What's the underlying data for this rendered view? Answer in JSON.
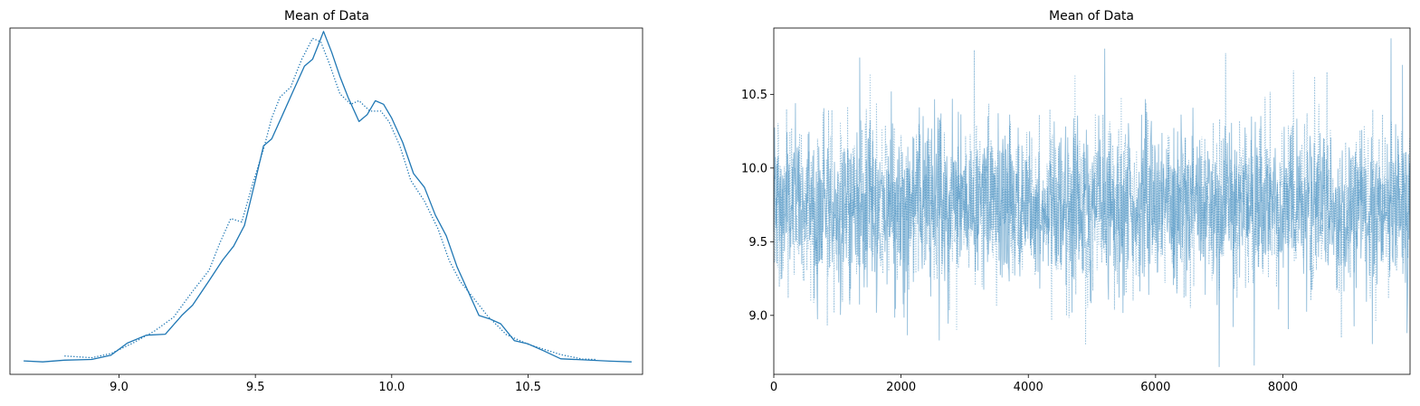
{
  "figure": {
    "panels": [
      {
        "title": "Mean of Data"
      },
      {
        "title": "Mean of Data"
      }
    ]
  },
  "chart_data": [
    {
      "type": "line",
      "title": "Mean of Data",
      "xlabel": "",
      "ylabel": "",
      "xlim": [
        8.6,
        10.92
      ],
      "ylim": [
        0,
        1.0
      ],
      "x_ticks": [
        "9.0",
        "9.5",
        "10.0",
        "10.5"
      ],
      "x_tick_values": [
        9.0,
        9.5,
        10.0,
        10.5
      ],
      "y_ticks": [],
      "grid": false,
      "line_color": "#1f77b4",
      "series": [
        {
          "line_style": "solid",
          "points": [
            [
              8.65,
              0.039
            ],
            [
              8.72,
              0.036
            ],
            [
              8.8,
              0.041
            ],
            [
              8.9,
              0.043
            ],
            [
              8.97,
              0.055
            ],
            [
              9.03,
              0.09
            ],
            [
              9.1,
              0.113
            ],
            [
              9.17,
              0.116
            ],
            [
              9.23,
              0.17
            ],
            [
              9.27,
              0.2
            ],
            [
              9.33,
              0.27
            ],
            [
              9.38,
              0.33
            ],
            [
              9.42,
              0.37
            ],
            [
              9.46,
              0.43
            ],
            [
              9.5,
              0.56
            ],
            [
              9.53,
              0.66
            ],
            [
              9.56,
              0.68
            ],
            [
              9.6,
              0.75
            ],
            [
              9.64,
              0.82
            ],
            [
              9.68,
              0.89
            ],
            [
              9.71,
              0.91
            ],
            [
              9.73,
              0.95
            ],
            [
              9.75,
              0.99
            ],
            [
              9.78,
              0.93
            ],
            [
              9.81,
              0.86
            ],
            [
              9.84,
              0.8
            ],
            [
              9.88,
              0.73
            ],
            [
              9.91,
              0.75
            ],
            [
              9.94,
              0.79
            ],
            [
              9.97,
              0.78
            ],
            [
              10.0,
              0.74
            ],
            [
              10.04,
              0.67
            ],
            [
              10.08,
              0.58
            ],
            [
              10.12,
              0.54
            ],
            [
              10.16,
              0.46
            ],
            [
              10.2,
              0.4
            ],
            [
              10.24,
              0.31
            ],
            [
              10.28,
              0.24
            ],
            [
              10.32,
              0.17
            ],
            [
              10.36,
              0.16
            ],
            [
              10.4,
              0.146
            ],
            [
              10.45,
              0.097
            ],
            [
              10.5,
              0.088
            ],
            [
              10.56,
              0.067
            ],
            [
              10.62,
              0.045
            ],
            [
              10.7,
              0.042
            ],
            [
              10.8,
              0.038
            ],
            [
              10.88,
              0.036
            ]
          ]
        },
        {
          "line_style": "dotted",
          "points": [
            [
              8.8,
              0.053
            ],
            [
              8.9,
              0.048
            ],
            [
              8.97,
              0.06
            ],
            [
              9.05,
              0.09
            ],
            [
              9.13,
              0.125
            ],
            [
              9.2,
              0.165
            ],
            [
              9.27,
              0.24
            ],
            [
              9.33,
              0.3
            ],
            [
              9.37,
              0.38
            ],
            [
              9.41,
              0.45
            ],
            [
              9.45,
              0.44
            ],
            [
              9.49,
              0.55
            ],
            [
              9.53,
              0.65
            ],
            [
              9.56,
              0.74
            ],
            [
              9.59,
              0.8
            ],
            [
              9.63,
              0.83
            ],
            [
              9.67,
              0.91
            ],
            [
              9.71,
              0.97
            ],
            [
              9.74,
              0.96
            ],
            [
              9.77,
              0.9
            ],
            [
              9.81,
              0.81
            ],
            [
              9.85,
              0.78
            ],
            [
              9.88,
              0.79
            ],
            [
              9.92,
              0.76
            ],
            [
              9.96,
              0.76
            ],
            [
              9.99,
              0.73
            ],
            [
              10.03,
              0.66
            ],
            [
              10.07,
              0.56
            ],
            [
              10.12,
              0.5
            ],
            [
              10.17,
              0.42
            ],
            [
              10.21,
              0.33
            ],
            [
              10.25,
              0.27
            ],
            [
              10.3,
              0.22
            ],
            [
              10.35,
              0.17
            ],
            [
              10.42,
              0.115
            ],
            [
              10.5,
              0.087
            ],
            [
              10.56,
              0.072
            ],
            [
              10.62,
              0.057
            ],
            [
              10.7,
              0.044
            ],
            [
              10.75,
              0.043
            ]
          ]
        }
      ]
    },
    {
      "type": "line",
      "title": "Mean of Data",
      "xlabel": "",
      "ylabel": "",
      "xlim": [
        0,
        9999
      ],
      "ylim": [
        8.6,
        10.95
      ],
      "x_ticks": [
        "0",
        "2000",
        "4000",
        "6000",
        "8000"
      ],
      "x_tick_values": [
        0,
        2000,
        4000,
        6000,
        8000
      ],
      "y_ticks": [
        "9.0",
        "9.5",
        "10.0",
        "10.5"
      ],
      "y_tick_values": [
        9.0,
        9.5,
        10.0,
        10.5
      ],
      "grid": false,
      "line_color": "#1f77b4",
      "draws": 10000,
      "series": [
        {
          "line_style": "solid",
          "summary": {
            "center": 9.75,
            "typical_low": 9.3,
            "typical_high": 10.2,
            "min": 8.65,
            "max": 10.88
          },
          "extremes": [
            [
              1350,
              10.75
            ],
            [
              2600,
              8.83
            ],
            [
              5200,
              10.81
            ],
            [
              7000,
              8.65
            ],
            [
              7550,
              8.66
            ],
            [
              9700,
              10.88
            ],
            [
              9880,
              10.7
            ],
            [
              9950,
              8.88
            ]
          ]
        },
        {
          "line_style": "dotted",
          "summary": {
            "center": 9.75,
            "typical_low": 9.3,
            "typical_high": 10.2,
            "min": 8.8,
            "max": 10.8
          },
          "extremes": [
            [
              3150,
              10.8
            ],
            [
              4900,
              8.8
            ],
            [
              7100,
              10.78
            ],
            [
              8500,
              10.62
            ]
          ]
        }
      ]
    }
  ]
}
